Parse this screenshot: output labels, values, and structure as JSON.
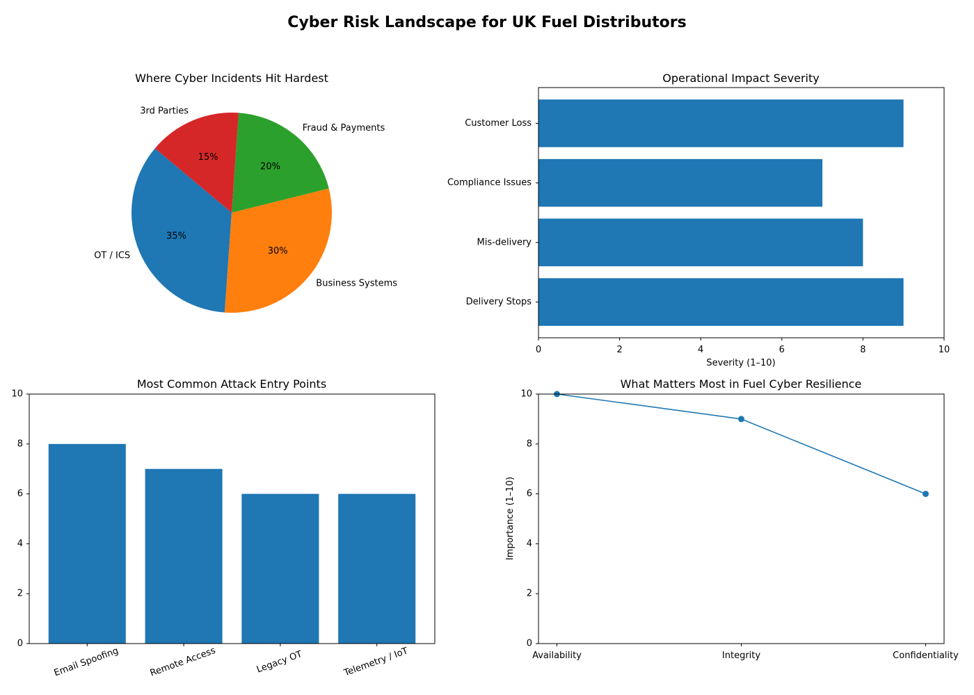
{
  "figure_title": "Cyber Risk Landscape for UK Fuel Distributors",
  "chart_data": [
    {
      "type": "pie",
      "title": "Where Cyber Incidents Hit Hardest",
      "labels": [
        "OT / ICS",
        "Business Systems",
        "Fraud & Payments",
        "3rd Parties"
      ],
      "values": [
        35,
        30,
        20,
        15
      ],
      "pct_labels": [
        "35%",
        "30%",
        "20%",
        "15%"
      ],
      "colors": [
        "#1f77b4",
        "#ff7f0e",
        "#2ca02c",
        "#d62728"
      ],
      "start_angle_deg": 140,
      "direction": "counterclockwise"
    },
    {
      "type": "bar",
      "orientation": "horizontal",
      "title": "Operational Impact Severity",
      "categories": [
        "Delivery Stops",
        "Mis-delivery",
        "Compliance Issues",
        "Customer Loss"
      ],
      "values": [
        9,
        8,
        7,
        9
      ],
      "xlabel": "Severity (1–10)",
      "ylabel": "",
      "xlim": [
        0,
        10
      ],
      "xticks": [
        "0",
        "2",
        "4",
        "6",
        "8",
        "10"
      ],
      "color": "#1f77b4",
      "grid": false
    },
    {
      "type": "bar",
      "orientation": "vertical",
      "title": "Most Common Attack Entry Points",
      "categories": [
        "Email Spoofing",
        "Remote Access",
        "Legacy OT",
        "Telemetry / IoT"
      ],
      "values": [
        8,
        7,
        6,
        6
      ],
      "xlabel": "",
      "ylabel": "",
      "ylim": [
        0,
        10
      ],
      "yticks": [
        "0",
        "2",
        "4",
        "6",
        "8",
        "10"
      ],
      "color": "#1f77b4",
      "grid": false
    },
    {
      "type": "line",
      "title": "What Matters Most in Fuel Cyber Resilience",
      "categories": [
        "Availability",
        "Integrity",
        "Confidentiality"
      ],
      "values": [
        10,
        9,
        6
      ],
      "xlabel": "",
      "ylabel": "Importance (1–10)",
      "ylim": [
        0,
        10
      ],
      "yticks": [
        "0",
        "2",
        "4",
        "6",
        "8",
        "10"
      ],
      "color": "#1f77b4",
      "markers": true,
      "grid": false
    }
  ]
}
